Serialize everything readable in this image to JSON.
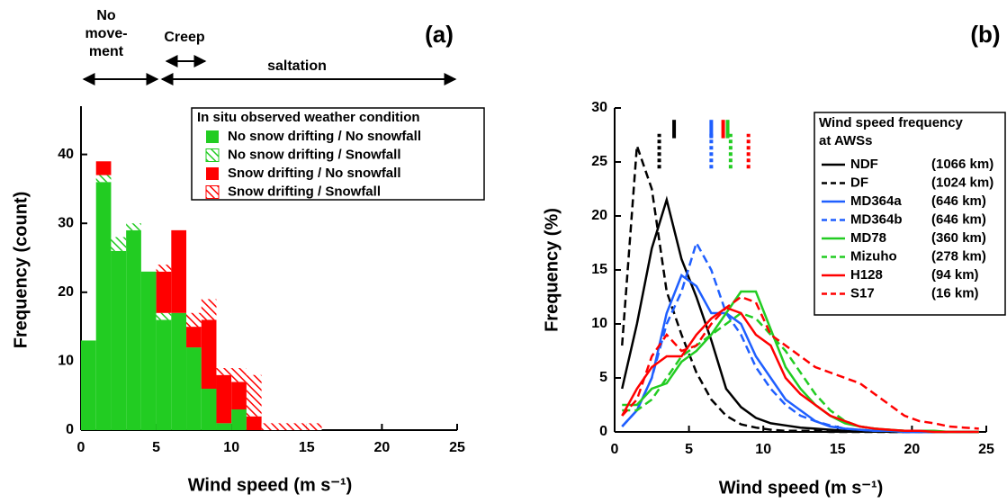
{
  "chart_data": [
    {
      "type": "histogram",
      "title": "(a)",
      "annotations": [
        "No",
        "move-",
        "ment",
        "Creep",
        "saltation"
      ],
      "xlabel": "Wind speed (m s⁻¹)",
      "ylabel": "Frequency (count)",
      "legend_title": "In situ observed weather condition",
      "bins": [
        0,
        1,
        2,
        3,
        4,
        5,
        6,
        7,
        8,
        9,
        10,
        11,
        12,
        13,
        14,
        15,
        16
      ],
      "series": [
        {
          "name": "No snow drifting / No snowfall",
          "color": "#22cc22",
          "hatch": false,
          "values": [
            13,
            36,
            26,
            29,
            23,
            16,
            17,
            12,
            6,
            1,
            3,
            0,
            0,
            0,
            0,
            0
          ]
        },
        {
          "name": "No snow drifting / Snowfall",
          "color": "#22cc22",
          "hatch": true,
          "values": [
            0,
            1,
            2,
            1,
            0,
            1,
            0,
            0,
            0,
            0,
            0,
            0,
            0,
            0,
            0,
            0
          ]
        },
        {
          "name": "Snow drifting / No snowfall",
          "color": "#ff0000",
          "hatch": false,
          "values": [
            0,
            2,
            0,
            0,
            0,
            6,
            12,
            3,
            10,
            7,
            4,
            2,
            0,
            0,
            0,
            0
          ]
        },
        {
          "name": "Snow drifting / Snowfall",
          "color": "#ff0000",
          "hatch": true,
          "values": [
            0,
            0,
            0,
            0,
            0,
            1,
            0,
            2,
            3,
            1,
            2,
            6,
            1,
            1,
            1,
            1
          ]
        }
      ],
      "xlim": [
        0,
        25
      ],
      "ylim": [
        0,
        47
      ],
      "xticks": [
        0,
        5,
        10,
        15,
        20,
        25
      ],
      "yticks": [
        0,
        10,
        20,
        30,
        40
      ]
    },
    {
      "type": "line",
      "title": "(b)",
      "xlabel": "Wind speed (m s⁻¹)",
      "ylabel": "Frequency (%)",
      "legend_title": [
        "Wind speed frequency",
        "at AWSs"
      ],
      "x": [
        0.5,
        1.5,
        2.5,
        3.5,
        4.5,
        5.5,
        6.5,
        7.5,
        8.5,
        9.5,
        10.5,
        11.5,
        12.5,
        13.5,
        14.5,
        15.5,
        16.5,
        17.5,
        18.5,
        19.5,
        20.5,
        21.5,
        22.5,
        23.5,
        24.5
      ],
      "series": [
        {
          "name": "NDF",
          "distance": "(1066 km)",
          "color": "#000000",
          "dashed": false,
          "mean": 4.0,
          "values": [
            4,
            10,
            17,
            21.5,
            16,
            12.5,
            8.5,
            4,
            2.3,
            1.3,
            0.8,
            0.6,
            0.4,
            0.3,
            0.2,
            0.1,
            0.1,
            0.1,
            0,
            0,
            0,
            0,
            0,
            0,
            0
          ]
        },
        {
          "name": "DF",
          "distance": "(1024 km)",
          "color": "#000000",
          "dashed": true,
          "mean": 3.0,
          "values": [
            8,
            26.5,
            22.5,
            13,
            9,
            5.5,
            3,
            1.5,
            0.7,
            0.4,
            0.2,
            0.1,
            0.1,
            0.1,
            0,
            0,
            0,
            0,
            0,
            0,
            0,
            0,
            0,
            0,
            0
          ]
        },
        {
          "name": "MD364a",
          "distance": "(646 km)",
          "color": "#1f5fff",
          "dashed": false,
          "mean": 6.5,
          "values": [
            0.5,
            2,
            5,
            11,
            14.5,
            13.5,
            11,
            11,
            10,
            7,
            5,
            3,
            2,
            1,
            0.5,
            0.3,
            0.2,
            0.1,
            0.1,
            0,
            0,
            0,
            0,
            0,
            0
          ]
        },
        {
          "name": "MD364b",
          "distance": "(646 km)",
          "color": "#1f5fff",
          "dashed": true,
          "mean": 6.5,
          "values": [
            0.5,
            2,
            5,
            10,
            13,
            17.5,
            15,
            11,
            9,
            6,
            4,
            2.5,
            1.5,
            1,
            0.6,
            0.3,
            0.2,
            0.1,
            0.1,
            0,
            0,
            0,
            0,
            0,
            0
          ]
        },
        {
          "name": "MD78",
          "distance": "(360 km)",
          "color": "#22cc22",
          "dashed": false,
          "mean": 7.6,
          "values": [
            2.5,
            2.5,
            4,
            4.5,
            6.5,
            7.5,
            9,
            11,
            13,
            13,
            9.5,
            6,
            4,
            2.5,
            1.5,
            0.8,
            0.5,
            0.3,
            0.2,
            0.1,
            0.1,
            0.1,
            0,
            0,
            0
          ]
        },
        {
          "name": "Mizuho",
          "distance": "(278 km)",
          "color": "#22cc22",
          "dashed": true,
          "mean": 7.8,
          "values": [
            2,
            2,
            3,
            5,
            7,
            8,
            9,
            10,
            11,
            10.5,
            9,
            7.5,
            5.5,
            3.5,
            2,
            1,
            0.5,
            0.3,
            0.2,
            0.1,
            0.1,
            0,
            0,
            0,
            0
          ]
        },
        {
          "name": "H128",
          "distance": "(94 km)",
          "color": "#ff0000",
          "dashed": false,
          "mean": 7.3,
          "values": [
            1.5,
            4,
            6,
            7,
            7,
            9,
            10.5,
            11.5,
            11,
            9,
            8,
            5,
            3.5,
            2.5,
            1.5,
            1,
            0.5,
            0.3,
            0.2,
            0.1,
            0.1,
            0,
            0,
            0,
            0
          ]
        },
        {
          "name": "S17",
          "distance": "(16 km)",
          "color": "#ff0000",
          "dashed": true,
          "mean": 9.0,
          "values": [
            1.5,
            3,
            7,
            9,
            7.5,
            8,
            10,
            11.5,
            12.5,
            12,
            9,
            8,
            7,
            6,
            5.5,
            5,
            4.5,
            3.5,
            2.5,
            1.5,
            1,
            0.8,
            0.5,
            0.4,
            0.3
          ]
        }
      ],
      "xlim": [
        0,
        25
      ],
      "ylim": [
        0,
        30
      ],
      "xticks": [
        0,
        5,
        10,
        15,
        20,
        25
      ],
      "yticks": [
        0,
        5,
        10,
        15,
        20,
        25,
        30
      ]
    }
  ]
}
